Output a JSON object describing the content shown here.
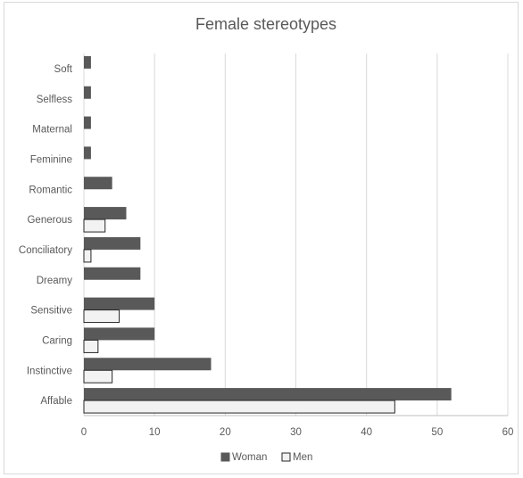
{
  "chart_data": {
    "type": "bar",
    "orientation": "horizontal",
    "title": "Female stereotypes",
    "categories": [
      "Soft",
      "Selfless",
      "Maternal",
      "Feminine",
      "Romantic",
      "Generous",
      "Conciliatory",
      "Dreamy",
      "Sensitive",
      "Caring",
      "Instinctive",
      "Affable"
    ],
    "series": [
      {
        "name": "Woman",
        "color": "#595959",
        "values": [
          1,
          1,
          1,
          1,
          4,
          6,
          8,
          8,
          10,
          10,
          18,
          52
        ]
      },
      {
        "name": "Men",
        "color": "#f2f2f2",
        "values": [
          0,
          0,
          0,
          0,
          0,
          3,
          1,
          0,
          5,
          2,
          4,
          44
        ]
      }
    ],
    "xlim": [
      0,
      60
    ],
    "xticks": [
      0,
      10,
      20,
      30,
      40,
      50,
      60
    ],
    "grid": "vertical major gridlines",
    "legend_position": "bottom"
  }
}
